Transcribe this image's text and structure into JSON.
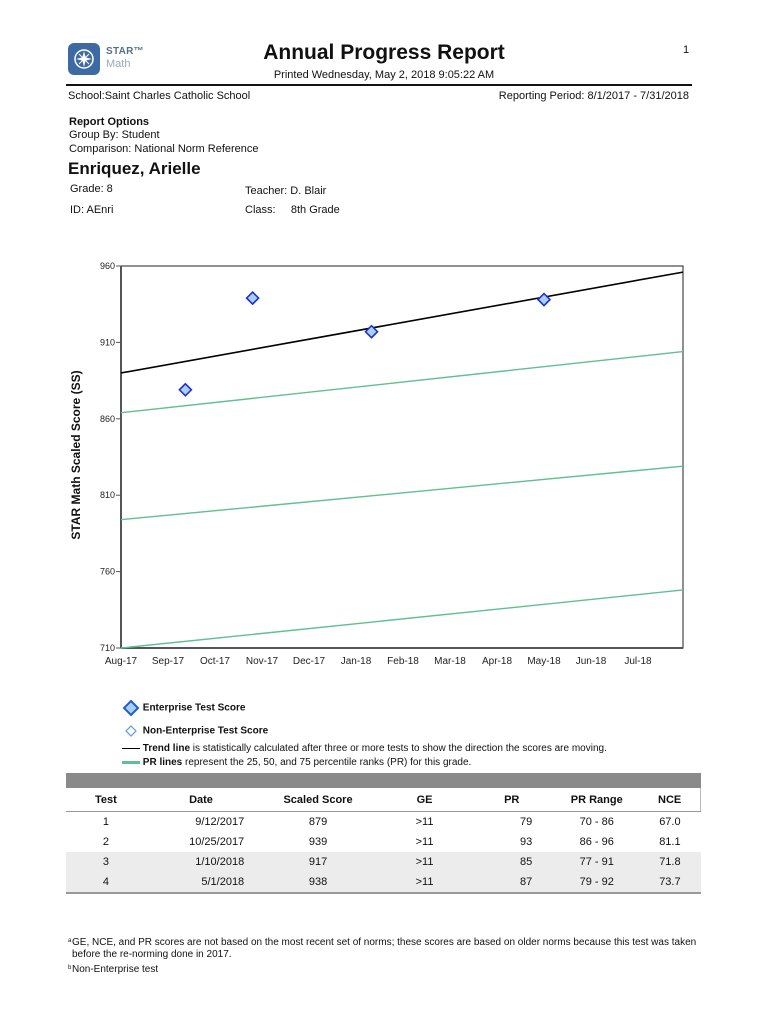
{
  "header": {
    "logo": {
      "brand": "STAR™",
      "product": "Math",
      "icon": "compass-icon"
    },
    "title": "Annual Progress Report",
    "printed": "Printed Wednesday, May 2, 2018 9:05:22 AM",
    "page_number": "1",
    "school_label": "School:",
    "school": "Saint Charles Catholic School",
    "reporting_period": "Reporting Period: 8/1/2017 - 7/31/2018"
  },
  "report_options": {
    "title": "Report Options",
    "group_by": "Group By: Student",
    "comparison": "Comparison:  National Norm Reference"
  },
  "student": {
    "name": "Enriquez, Arielle",
    "grade": "Grade: 8",
    "id": "ID: AEnri",
    "teacher_label": "Teacher:",
    "teacher": "D. Blair",
    "class_label": "Class:",
    "class": "8th Grade"
  },
  "chart_data": {
    "type": "scatter",
    "title": "",
    "xlabel": "",
    "ylabel": "STAR Math Scaled Score (SS)",
    "ylim": [
      710,
      960
    ],
    "yticks": [
      710,
      760,
      810,
      860,
      910,
      960
    ],
    "categories": [
      "Aug-17",
      "Sep-17",
      "Oct-17",
      "Nov-17",
      "Dec-17",
      "Jan-18",
      "Feb-18",
      "Mar-18",
      "Apr-18",
      "May-18",
      "Jun-18",
      "Jul-18"
    ],
    "grid": false,
    "series": [
      {
        "name": "Enterprise Test Score",
        "kind": "scatter",
        "marker": "diamond",
        "color": "#1f2fd0",
        "fill": "#a9cff5",
        "points": [
          {
            "date": "9/12/2017",
            "x_month": 1.37,
            "y": 879
          },
          {
            "date": "10/25/2017",
            "x_month": 2.8,
            "y": 939
          },
          {
            "date": "1/10/2018",
            "x_month": 5.33,
            "y": 917
          },
          {
            "date": "5/1/2018",
            "x_month": 9.0,
            "y": 938
          }
        ]
      },
      {
        "name": "Trend line",
        "kind": "line",
        "color": "#000000",
        "start": 890,
        "end": 956
      },
      {
        "name": "PR 75",
        "kind": "line",
        "color": "#5fbf95",
        "start": 864,
        "end": 904
      },
      {
        "name": "PR 50",
        "kind": "line",
        "color": "#5fbf95",
        "start": 794,
        "end": 829
      },
      {
        "name": "PR 25",
        "kind": "line",
        "color": "#5fbf95",
        "start": 710,
        "end": 748
      }
    ]
  },
  "legend": {
    "enterprise": "Enterprise Test Score",
    "non_enterprise": "Non-Enterprise Test Score",
    "trend_bold": "Trend line",
    "trend_rest": " is statistically calculated after three or more tests to show the direction the scores are moving.",
    "pr_bold": "PR lines",
    "pr_rest": " represent the 25, 50, and 75 percentile ranks (PR) for this grade."
  },
  "table": {
    "headers": [
      "Test",
      "Date",
      "Scaled Score",
      "GE",
      "PR",
      "PR Range",
      "NCE"
    ],
    "rows": [
      [
        "1",
        "9/12/2017",
        "879",
        ">11",
        "79",
        "70 - 86",
        "67.0"
      ],
      [
        "2",
        "10/25/2017",
        "939",
        ">11",
        "93",
        "86 - 96",
        "81.1"
      ],
      [
        "3",
        "1/10/2018",
        "917",
        ">11",
        "85",
        "77 - 91",
        "71.8"
      ],
      [
        "4",
        "5/1/2018",
        "938",
        ">11",
        "87",
        "79 - 92",
        "73.7"
      ]
    ]
  },
  "footnotes": {
    "a_mark": "a",
    "a_text": "GE, NCE, and PR scores are not based on the most recent set of norms; these scores are based on older norms because this test was taken before the re-norming done in 2017.",
    "b_mark": "b",
    "b_text": "Non-Enterprise test"
  }
}
